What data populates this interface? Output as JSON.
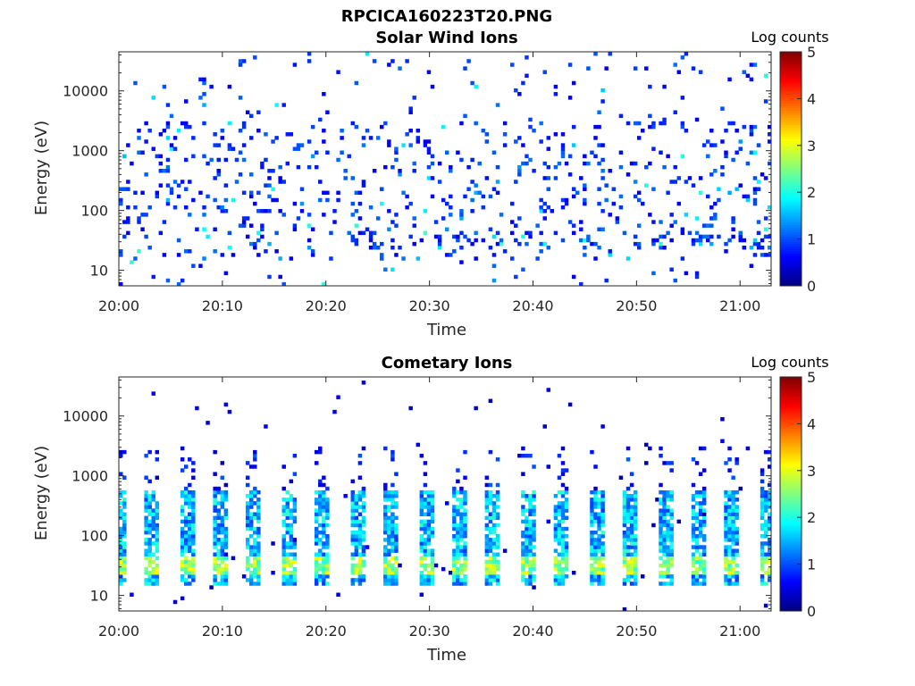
{
  "figure": {
    "title": "RPCICA160223T20.PNG"
  },
  "chart_data": [
    {
      "type": "heatmap",
      "title": "Solar Wind Ions",
      "xlabel": "Time",
      "ylabel": "Energy (eV)",
      "y_scale": "log",
      "ylim": [
        5.5,
        45000
      ],
      "xlim": [
        "20:00",
        "21:03"
      ],
      "x_ticks": [
        "20:00",
        "20:10",
        "20:20",
        "20:30",
        "20:40",
        "20:50",
        "21:00"
      ],
      "y_ticks": [
        {
          "value": 10,
          "label": "10"
        },
        {
          "value": 100,
          "label": "100"
        },
        {
          "value": 1000,
          "label": "1000"
        },
        {
          "value": 10000,
          "label": "10000"
        }
      ],
      "colorbar": {
        "label": "Log counts",
        "range": [
          0,
          5
        ],
        "ticks": [
          "0",
          "1",
          "2",
          "3",
          "4",
          "5"
        ],
        "colormap": "jet"
      },
      "pattern": "sparse",
      "dominant_level": 0.5,
      "peak_level": 2.2,
      "grid": false
    },
    {
      "type": "heatmap",
      "title": "Cometary Ions",
      "xlabel": "Time",
      "ylabel": "Energy (eV)",
      "y_scale": "log",
      "ylim": [
        5.5,
        45000
      ],
      "xlim": [
        "20:00",
        "21:03"
      ],
      "x_ticks": [
        "20:00",
        "20:10",
        "20:20",
        "20:30",
        "20:40",
        "20:50",
        "21:00"
      ],
      "y_ticks": [
        {
          "value": 10,
          "label": "10"
        },
        {
          "value": 100,
          "label": "100"
        },
        {
          "value": 1000,
          "label": "1000"
        },
        {
          "value": 10000,
          "label": "10000"
        }
      ],
      "colorbar": {
        "label": "Log counts",
        "range": [
          0,
          5
        ],
        "ticks": [
          "0",
          "1",
          "2",
          "3",
          "4",
          "5"
        ],
        "colormap": "jet"
      },
      "pattern": "periodic-bursts",
      "burst_period_minutes": 3.3,
      "burst_energy_range_eV": [
        15,
        600
      ],
      "dominant_level": 1.8,
      "peak_level": 3.2,
      "peak_energy_eV": 30,
      "grid": false
    }
  ]
}
